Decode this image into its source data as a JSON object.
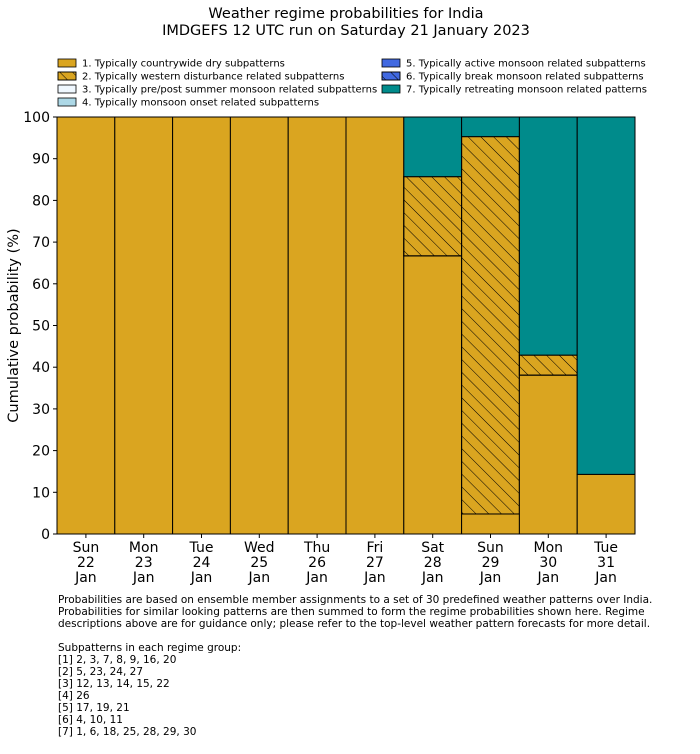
{
  "title_line1": "Weather regime probabilities for India",
  "title_line2": "IMDGEFS 12 UTC run on Saturday 21 January 2023",
  "colors": {
    "regime1": "#DAA520",
    "regime2": "#DAA520",
    "regime3": "#F0F8FF",
    "regime4": "#ADD8E6",
    "regime5": "#4169E1",
    "regime6": "#4169E1",
    "regime7": "#008B8B"
  },
  "legend": [
    {
      "label": "1. Typically countrywide dry subpatterns",
      "color": "#DAA520",
      "hatched": false
    },
    {
      "label": "2. Typically western disturbance related subpatterns",
      "color": "#DAA520",
      "hatched": true
    },
    {
      "label": "3. Typically pre/post summer monsoon related subpatterns",
      "color": "#F0F8FF",
      "hatched": false
    },
    {
      "label": "4. Typically monsoon onset related subpatterns",
      "color": "#ADD8E6",
      "hatched": false
    },
    {
      "label": "5. Typically active monsoon related subpatterns",
      "color": "#4169E1",
      "hatched": false
    },
    {
      "label": "6. Typically break monsoon related subpatterns",
      "color": "#4169E1",
      "hatched": true
    },
    {
      "label": "7. Typically retreating monsoon related patterns",
      "color": "#008B8B",
      "hatched": false
    }
  ],
  "chart_data": {
    "type": "bar",
    "stacked": true,
    "ylabel": "Cumulative probability (%)",
    "ylim": [
      0,
      100
    ],
    "yticks": [
      0,
      10,
      20,
      30,
      40,
      50,
      60,
      70,
      80,
      90,
      100
    ],
    "categories": [
      [
        "Sun",
        "22",
        "Jan"
      ],
      [
        "Mon",
        "23",
        "Jan"
      ],
      [
        "Tue",
        "24",
        "Jan"
      ],
      [
        "Wed",
        "25",
        "Jan"
      ],
      [
        "Thu",
        "26",
        "Jan"
      ],
      [
        "Fri",
        "27",
        "Jan"
      ],
      [
        "Sat",
        "28",
        "Jan"
      ],
      [
        "Sun",
        "29",
        "Jan"
      ],
      [
        "Mon",
        "30",
        "Jan"
      ],
      [
        "Tue",
        "31",
        "Jan"
      ]
    ],
    "series": [
      {
        "name": "1. Typically countrywide dry subpatterns",
        "values": [
          100,
          100,
          100,
          100,
          100,
          100,
          66.7,
          4.8,
          38.1,
          14.3
        ]
      },
      {
        "name": "2. Typically western disturbance related subpatterns",
        "values": [
          0,
          0,
          0,
          0,
          0,
          0,
          19.0,
          90.5,
          4.8,
          0
        ]
      },
      {
        "name": "3. Typically pre/post summer monsoon related subpatterns",
        "values": [
          0,
          0,
          0,
          0,
          0,
          0,
          0,
          0,
          0,
          0
        ]
      },
      {
        "name": "4. Typically monsoon onset related subpatterns",
        "values": [
          0,
          0,
          0,
          0,
          0,
          0,
          0,
          0,
          0,
          0
        ]
      },
      {
        "name": "5. Typically active monsoon related subpatterns",
        "values": [
          0,
          0,
          0,
          0,
          0,
          0,
          0,
          0,
          0,
          0
        ]
      },
      {
        "name": "6. Typically break monsoon related subpatterns",
        "values": [
          0,
          0,
          0,
          0,
          0,
          0,
          0,
          0,
          0,
          0
        ]
      },
      {
        "name": "7. Typically retreating monsoon related patterns",
        "values": [
          0,
          0,
          0,
          0,
          0,
          0,
          14.3,
          4.7,
          57.1,
          85.7
        ]
      }
    ]
  },
  "notes": {
    "line1": "Probabilities are based on ensemble member assignments to a set of 30 predefined weather patterns over India.",
    "line2": "Probabilities for similar looking patterns are then summed to form the regime probabilities shown here. Regime",
    "line3": "descriptions above are for guidance only; please refer to the top-level weather pattern forecasts for more detail.",
    "subpatterns_header": "Subpatterns in each regime group:",
    "subpatterns": [
      "[1] 2, 3, 7, 8, 9, 16, 20",
      "[2] 5, 23, 24, 27",
      "[3] 12, 13, 14, 15, 22",
      "[4] 26",
      "[5] 17, 19, 21",
      "[6] 4, 10, 11",
      "[7] 1, 6, 18, 25, 28, 29, 30"
    ]
  }
}
